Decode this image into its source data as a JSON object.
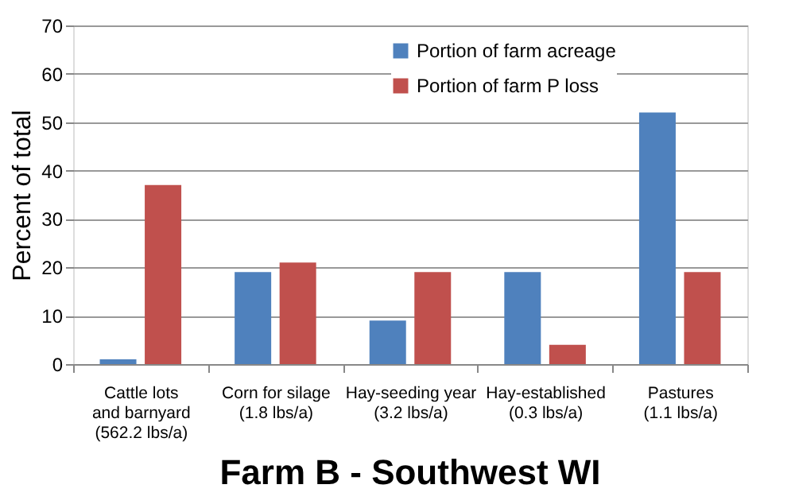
{
  "chart_data": {
    "type": "bar",
    "title": "Farm B - Southwest WI",
    "ylabel": "Percent of total",
    "categories": [
      "Cattle lots\nand barnyard\n(562.2 lbs/a)",
      "Corn for silage\n(1.8 lbs/a)",
      "Hay-seeding year\n(3.2 lbs/a)",
      "Hay-established\n(0.3 lbs/a)",
      "Pastures\n(1.1 lbs/a)"
    ],
    "series": [
      {
        "name": "Portion of farm acreage",
        "color": "#4f81bd",
        "values": [
          1,
          19,
          9,
          19,
          52
        ]
      },
      {
        "name": "Portion of farm P loss",
        "color": "#c0504d",
        "values": [
          37,
          21,
          19,
          4,
          19
        ]
      }
    ],
    "ylim": [
      0,
      70
    ],
    "yticks": [
      0,
      10,
      20,
      30,
      40,
      50,
      60,
      70
    ],
    "grid": "y",
    "legend": "top"
  }
}
